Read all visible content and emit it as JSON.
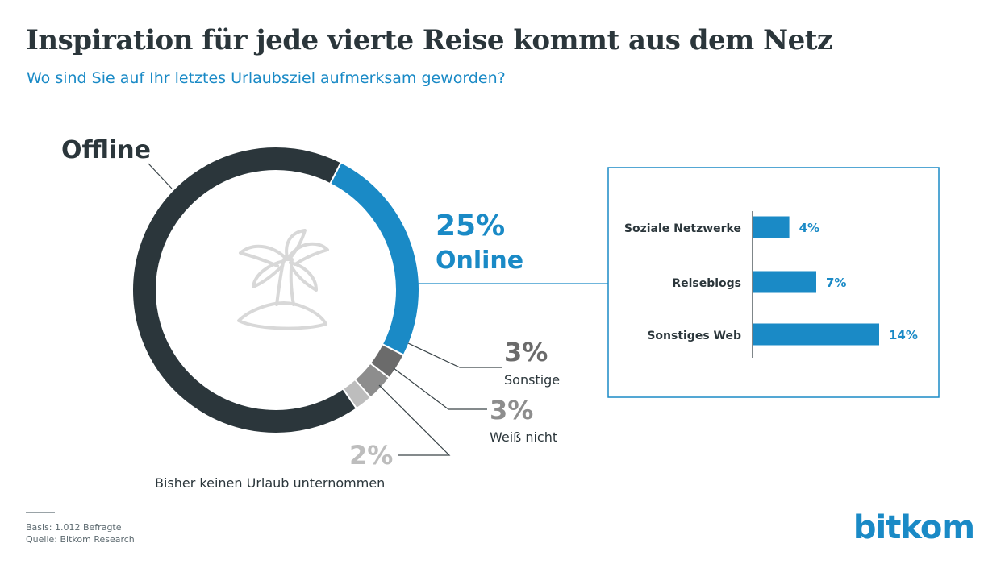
{
  "header": {
    "title": "Inspiration für jede vierte Reise kommt aus dem Netz",
    "subtitle": "Wo sind Sie auf Ihr letztes Urlaubsziel aufmerksam geworden?"
  },
  "chart_data": [
    {
      "type": "pie",
      "variant": "donut",
      "center_icon": "palm-island-icon",
      "slices": [
        {
          "key": "online",
          "label": "Online",
          "value": 25,
          "value_label": "25%",
          "color": "#1a8ac6"
        },
        {
          "key": "sonstige",
          "label": "Sonstige",
          "value": 3,
          "value_label": "3%",
          "color": "#6b6b6b"
        },
        {
          "key": "weiss",
          "label": "Weiß nicht",
          "value": 3,
          "value_label": "3%",
          "color": "#8d8d8d"
        },
        {
          "key": "bisher",
          "label": "Bisher keinen Urlaub unternommen",
          "value": 2,
          "value_label": "2%",
          "color": "#bdbdbd"
        },
        {
          "key": "offline",
          "label": "Offline",
          "value": 67,
          "value_label": "",
          "color": "#2b363b"
        }
      ]
    },
    {
      "type": "bar",
      "orientation": "horizontal",
      "categories": [
        "Soziale Netzwerke",
        "Reiseblogs",
        "Sonstiges Web"
      ],
      "values": [
        4,
        7,
        14
      ],
      "value_labels": [
        "4%",
        "7%",
        "14%"
      ],
      "color": "#1a8ac6"
    }
  ],
  "footer": {
    "basis": "Basis: 1.012 Befragte",
    "source": "Quelle: Bitkom Research"
  },
  "logo": {
    "text": "bitkom"
  }
}
